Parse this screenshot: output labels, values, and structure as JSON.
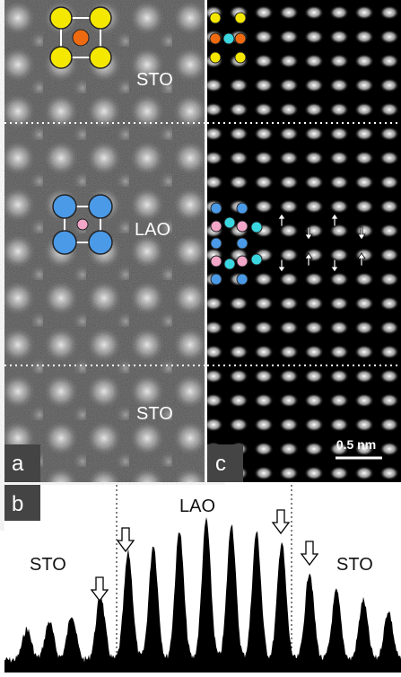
{
  "panel_a": {
    "label": "a",
    "regions": [
      "STO",
      "LAO",
      "STO"
    ]
  },
  "panel_c": {
    "label": "c",
    "scale_bar": "0.5 nm"
  },
  "panel_b": {
    "label": "b",
    "regions": [
      "STO",
      "LAO",
      "STO"
    ]
  }
}
